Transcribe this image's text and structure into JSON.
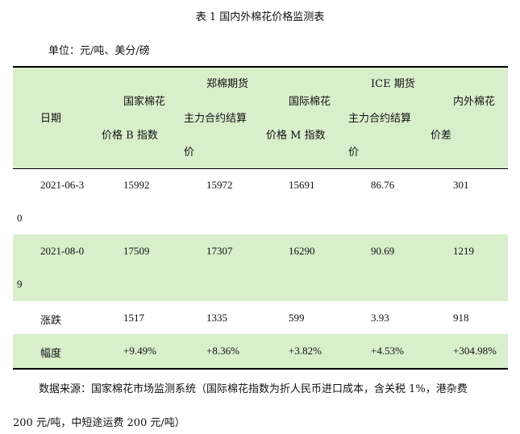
{
  "title": "表 1  国内外棉花价格监测表",
  "unit": "单位：元/吨、美分/磅",
  "header": {
    "date": "日期",
    "national_index_l1": "国家棉花",
    "national_index_l2": "价格 B 指数",
    "zce_l1": "郑棉期货",
    "zce_l2": "主力合约结算",
    "zce_l3": "价",
    "intl_index_l1": "国际棉花",
    "intl_index_l2": "价格 M 指数",
    "ice_l1": "ICE 期货",
    "ice_l2": "主力合约结算",
    "ice_l3": "价",
    "spread_l1": "内外棉花",
    "spread_l2": "价差"
  },
  "rows": [
    {
      "date_a": "2021-06-3",
      "date_b": "0",
      "national": "15992",
      "zce": "15972",
      "intl": "15691",
      "ice": "86.76",
      "spread": "301"
    },
    {
      "date_a": "2021-08-0",
      "date_b": "9",
      "national": "17509",
      "zce": "17307",
      "intl": "16290",
      "ice": "90.69",
      "spread": "1219"
    },
    {
      "date_a": "涨跌",
      "date_b": "",
      "national": "1517",
      "zce": "1335",
      "intl": "599",
      "ice": "3.93",
      "spread": "918"
    },
    {
      "date_a": "幅度",
      "date_b": "",
      "national": "+9.49%",
      "zce": "+8.36%",
      "intl": "+3.82%",
      "ice": "+4.53%",
      "spread": "+304.98%"
    }
  ],
  "source_l1": "数据来源：国家棉花市场监测系统（国际棉花指数为折人民币进口成本，含关税 1%，港杂费",
  "source_l2": "200 元/吨，中短途运费 200 元/吨）",
  "colors": {
    "band": "#d9eecb",
    "rule": "#000000"
  }
}
